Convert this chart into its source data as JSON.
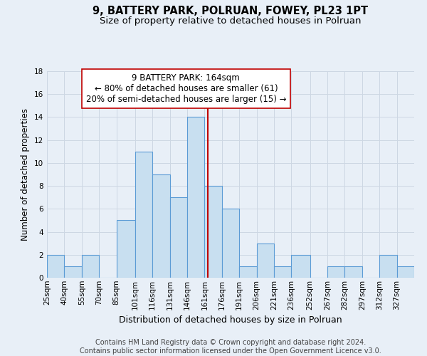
{
  "title": "9, BATTERY PARK, POLRUAN, FOWEY, PL23 1PT",
  "subtitle": "Size of property relative to detached houses in Polruan",
  "xlabel": "Distribution of detached houses by size in Polruan",
  "ylabel": "Number of detached properties",
  "footer_line1": "Contains HM Land Registry data © Crown copyright and database right 2024.",
  "footer_line2": "Contains public sector information licensed under the Open Government Licence v3.0.",
  "bin_labels": [
    "25sqm",
    "40sqm",
    "55sqm",
    "70sqm",
    "85sqm",
    "101sqm",
    "116sqm",
    "131sqm",
    "146sqm",
    "161sqm",
    "176sqm",
    "191sqm",
    "206sqm",
    "221sqm",
    "236sqm",
    "252sqm",
    "267sqm",
    "282sqm",
    "297sqm",
    "312sqm",
    "327sqm"
  ],
  "bin_edges": [
    25,
    40,
    55,
    70,
    85,
    101,
    116,
    131,
    146,
    161,
    176,
    191,
    206,
    221,
    236,
    252,
    267,
    282,
    297,
    312,
    327,
    342
  ],
  "counts": [
    2,
    1,
    2,
    0,
    5,
    11,
    9,
    7,
    14,
    8,
    6,
    1,
    3,
    1,
    2,
    0,
    1,
    1,
    0,
    2,
    1
  ],
  "bar_color": "#c8dff0",
  "bar_edge_color": "#5b9bd5",
  "property_size": 164,
  "vline_color": "#c00000",
  "annotation_line1": "9 BATTERY PARK: 164sqm",
  "annotation_line2": "← 80% of detached houses are smaller (61)",
  "annotation_line3": "20% of semi-detached houses are larger (15) →",
  "annotation_box_color": "#ffffff",
  "annotation_box_edge_color": "#c00000",
  "ylim": [
    0,
    18
  ],
  "yticks": [
    0,
    2,
    4,
    6,
    8,
    10,
    12,
    14,
    16,
    18
  ],
  "grid_color": "#cdd7e3",
  "background_color": "#e8eff7",
  "plot_bg_color": "#e8eff7",
  "title_fontsize": 10.5,
  "subtitle_fontsize": 9.5,
  "xlabel_fontsize": 9,
  "ylabel_fontsize": 8.5,
  "tick_fontsize": 7.5,
  "annotation_fontsize": 8.5,
  "footer_fontsize": 7
}
